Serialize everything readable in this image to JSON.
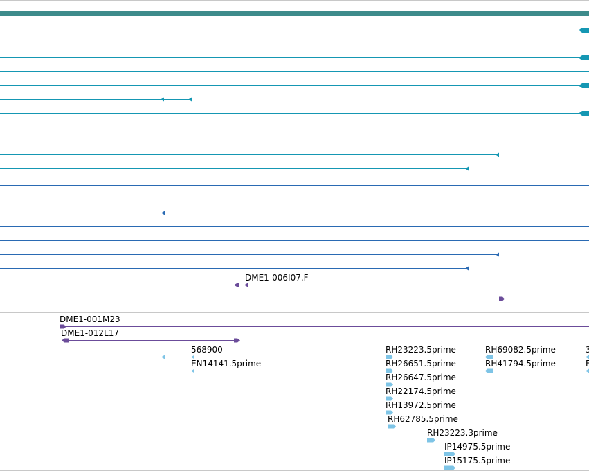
{
  "colors": {
    "gene_bar": "#3d8b8b",
    "transcript": "#1597b3",
    "cds": "#2a6ab3",
    "genomic_clone": "#6b4c9a",
    "est": "#7ec4e6",
    "separator": "#c8c8c8"
  },
  "tracks": [
    {
      "name": "transcripts",
      "features": 11
    },
    {
      "name": "cds",
      "features": 7
    },
    {
      "name": "genomic-clones",
      "features": 4
    },
    {
      "name": "ests",
      "features": 19
    }
  ],
  "genomic_clone_labels": [
    "DME1-006I07.F",
    "DME1-001M23",
    "DME1-012L17"
  ],
  "est_labels": [
    "568900",
    "EN14141.5prime",
    "RH23223.5prime",
    "RH26651.5prime",
    "RH26647.5prime",
    "RH22174.5prime",
    "RH13972.5prime",
    "RH62785.5prime",
    "RH23223.3prime",
    "IP14975.5prime",
    "IP15175.5prime",
    "RH69082.5prime",
    "RH41794.5prime",
    "3",
    "E"
  ]
}
